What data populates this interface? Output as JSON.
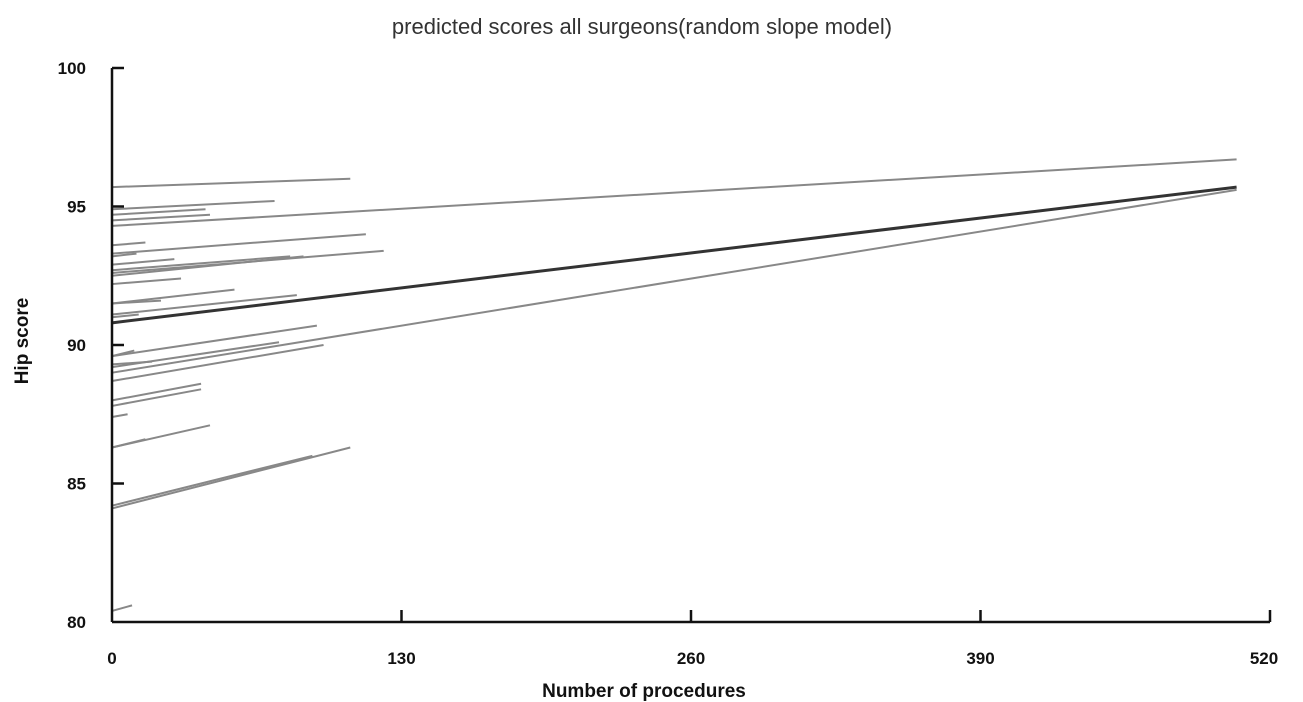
{
  "chart_data": {
    "type": "line",
    "title": "predicted scores all surgeons(random slope model)",
    "xlabel": "Number of procedures",
    "ylabel": "Hip score",
    "xlim": [
      0,
      520
    ],
    "ylim": [
      80,
      100
    ],
    "xticks": [
      0,
      130,
      260,
      390,
      520
    ],
    "xtick_labels": [
      "0",
      "130",
      "260",
      "390",
      "520"
    ],
    "yticks": [
      80,
      85,
      90,
      95,
      100
    ],
    "ytick_labels": [
      "80",
      "85",
      "90",
      "95",
      "100"
    ],
    "grid": false,
    "legend": "none",
    "highlight": {
      "x": [
        0,
        505
      ],
      "y": [
        90.8,
        95.7
      ],
      "color": "#333333"
    },
    "series_color": "#888888",
    "series": [
      {
        "x": [
          0,
          505
        ],
        "y": [
          94.3,
          96.7
        ]
      },
      {
        "x": [
          0,
          505
        ],
        "y": [
          89.0,
          95.6
        ]
      },
      {
        "x": [
          0,
          107
        ],
        "y": [
          95.7,
          96.0
        ]
      },
      {
        "x": [
          0,
          73
        ],
        "y": [
          94.9,
          95.2
        ]
      },
      {
        "x": [
          0,
          42
        ],
        "y": [
          94.7,
          94.9
        ]
      },
      {
        "x": [
          0,
          44
        ],
        "y": [
          94.5,
          94.7
        ]
      },
      {
        "x": [
          0,
          114
        ],
        "y": [
          93.3,
          94.0
        ]
      },
      {
        "x": [
          0,
          122
        ],
        "y": [
          92.6,
          93.4
        ]
      },
      {
        "x": [
          0,
          86
        ],
        "y": [
          92.5,
          93.2
        ]
      },
      {
        "x": [
          0,
          80
        ],
        "y": [
          92.7,
          93.2
        ]
      },
      {
        "x": [
          0,
          15
        ],
        "y": [
          93.6,
          93.7
        ]
      },
      {
        "x": [
          0,
          11
        ],
        "y": [
          93.2,
          93.3
        ]
      },
      {
        "x": [
          0,
          28
        ],
        "y": [
          92.9,
          93.1
        ]
      },
      {
        "x": [
          0,
          31
        ],
        "y": [
          92.2,
          92.4
        ]
      },
      {
        "x": [
          0,
          55
        ],
        "y": [
          91.5,
          92.0
        ]
      },
      {
        "x": [
          0,
          83
        ],
        "y": [
          91.1,
          91.8
        ]
      },
      {
        "x": [
          0,
          12
        ],
        "y": [
          91.0,
          91.1
        ]
      },
      {
        "x": [
          0,
          22
        ],
        "y": [
          91.5,
          91.6
        ]
      },
      {
        "x": [
          0,
          92
        ],
        "y": [
          89.6,
          90.7
        ]
      },
      {
        "x": [
          0,
          75
        ],
        "y": [
          89.2,
          90.1
        ]
      },
      {
        "x": [
          0,
          95
        ],
        "y": [
          88.7,
          90.0
        ]
      },
      {
        "x": [
          0,
          10
        ],
        "y": [
          89.6,
          89.8
        ]
      },
      {
        "x": [
          0,
          18
        ],
        "y": [
          89.3,
          89.4
        ]
      },
      {
        "x": [
          0,
          40
        ],
        "y": [
          88.0,
          88.6
        ]
      },
      {
        "x": [
          0,
          40
        ],
        "y": [
          87.8,
          88.4
        ]
      },
      {
        "x": [
          0,
          7
        ],
        "y": [
          87.4,
          87.5
        ]
      },
      {
        "x": [
          0,
          44
        ],
        "y": [
          86.3,
          87.1
        ]
      },
      {
        "x": [
          0,
          15
        ],
        "y": [
          86.3,
          86.6
        ]
      },
      {
        "x": [
          0,
          90
        ],
        "y": [
          84.2,
          86.0
        ]
      },
      {
        "x": [
          0,
          107
        ],
        "y": [
          84.1,
          86.3
        ]
      },
      {
        "x": [
          0,
          9
        ],
        "y": [
          80.4,
          80.6
        ]
      }
    ]
  }
}
